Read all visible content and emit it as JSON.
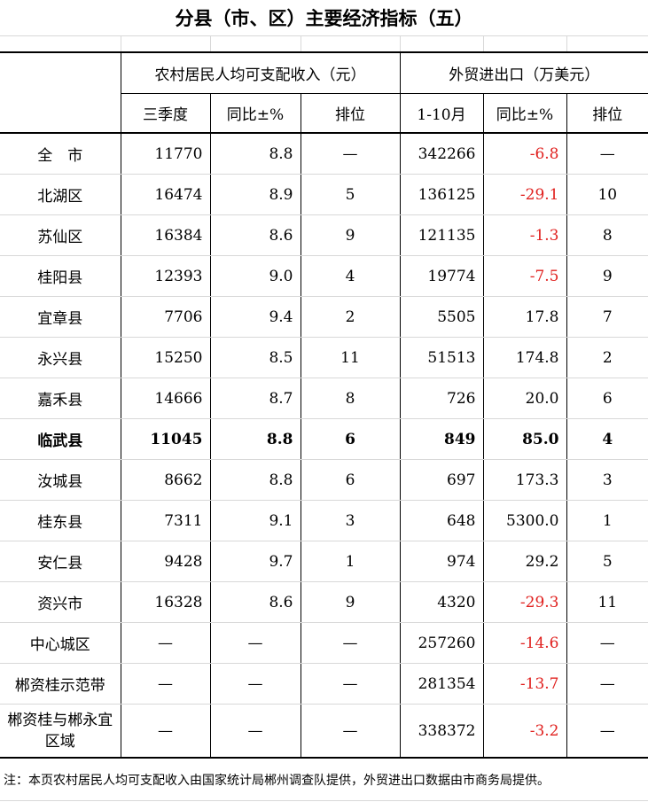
{
  "title": "分县（市、区）主要经济指标（五）",
  "headers": {
    "group1": "农村居民人均可支配收入（元）",
    "group2": "外贸进出口（万美元）",
    "sub": [
      "三季度",
      "同比±%",
      "排位",
      "1-10月",
      "同比±%",
      "排位"
    ]
  },
  "rows": [
    {
      "name": "全　市",
      "income": "11770",
      "income_yoy": "8.8",
      "income_rank": "—",
      "trade": "342266",
      "trade_yoy": "-6.8",
      "trade_rank": "—"
    },
    {
      "name": "北湖区",
      "income": "16474",
      "income_yoy": "8.9",
      "income_rank": "5",
      "trade": "136125",
      "trade_yoy": "-29.1",
      "trade_rank": "10"
    },
    {
      "name": "苏仙区",
      "income": "16384",
      "income_yoy": "8.6",
      "income_rank": "9",
      "trade": "121135",
      "trade_yoy": "-1.3",
      "trade_rank": "8"
    },
    {
      "name": "桂阳县",
      "income": "12393",
      "income_yoy": "9.0",
      "income_rank": "4",
      "trade": "19774",
      "trade_yoy": "-7.5",
      "trade_rank": "9"
    },
    {
      "name": "宜章县",
      "income": "7706",
      "income_yoy": "9.4",
      "income_rank": "2",
      "trade": "5505",
      "trade_yoy": "17.8",
      "trade_rank": "7"
    },
    {
      "name": "永兴县",
      "income": "15250",
      "income_yoy": "8.5",
      "income_rank": "11",
      "trade": "51513",
      "trade_yoy": "174.8",
      "trade_rank": "2"
    },
    {
      "name": "嘉禾县",
      "income": "14666",
      "income_yoy": "8.7",
      "income_rank": "8",
      "trade": "726",
      "trade_yoy": "20.0",
      "trade_rank": "6"
    },
    {
      "name": "临武县",
      "income": "11045",
      "income_yoy": "8.8",
      "income_rank": "6",
      "trade": "849",
      "trade_yoy": "85.0",
      "trade_rank": "4",
      "bold": true
    },
    {
      "name": "汝城县",
      "income": "8662",
      "income_yoy": "8.8",
      "income_rank": "6",
      "trade": "697",
      "trade_yoy": "173.3",
      "trade_rank": "3"
    },
    {
      "name": "桂东县",
      "income": "7311",
      "income_yoy": "9.1",
      "income_rank": "3",
      "trade": "648",
      "trade_yoy": "5300.0",
      "trade_rank": "1"
    },
    {
      "name": "安仁县",
      "income": "9428",
      "income_yoy": "9.7",
      "income_rank": "1",
      "trade": "974",
      "trade_yoy": "29.2",
      "trade_rank": "5"
    },
    {
      "name": "资兴市",
      "income": "16328",
      "income_yoy": "8.6",
      "income_rank": "9",
      "trade": "4320",
      "trade_yoy": "-29.3",
      "trade_rank": "11"
    },
    {
      "name": "中心城区",
      "income": "—",
      "income_yoy": "—",
      "income_rank": "—",
      "trade": "257260",
      "trade_yoy": "-14.6",
      "trade_rank": "—"
    },
    {
      "name": "郴资桂示范带",
      "income": "—",
      "income_yoy": "—",
      "income_rank": "—",
      "trade": "281354",
      "trade_yoy": "-13.7",
      "trade_rank": "—"
    },
    {
      "name": "郴资桂与郴永宜区域",
      "income": "—",
      "income_yoy": "—",
      "income_rank": "—",
      "trade": "338372",
      "trade_yoy": "-3.2",
      "trade_rank": "—"
    }
  ],
  "note": "注：本页农村居民人均可支配收入由国家统计局郴州调查队提供，外贸进出口数据由市商务局提供。",
  "colors": {
    "negative": "#e0201e"
  }
}
